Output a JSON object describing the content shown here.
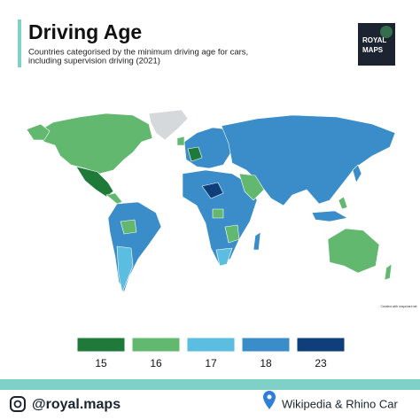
{
  "header": {
    "title": "Driving Age",
    "subtitle_lines": [
      "Countries categorised by the minimum driving age for cars,",
      "including supervision driving (2021)"
    ]
  },
  "logo": {
    "lines": [
      "ROYAL",
      "MAPS"
    ]
  },
  "map": {
    "credit": "Created with mapchart.net"
  },
  "legend": {
    "items": [
      {
        "label": "15",
        "color": "#1f7a3a"
      },
      {
        "label": "16",
        "color": "#62b86f"
      },
      {
        "label": "17",
        "color": "#5bbde0"
      },
      {
        "label": "18",
        "color": "#3a8dc8"
      },
      {
        "label": "23",
        "color": "#0f3f7a"
      }
    ]
  },
  "footer": {
    "handle": "@royal.maps",
    "source": "Wikipedia & Rhino Car"
  }
}
